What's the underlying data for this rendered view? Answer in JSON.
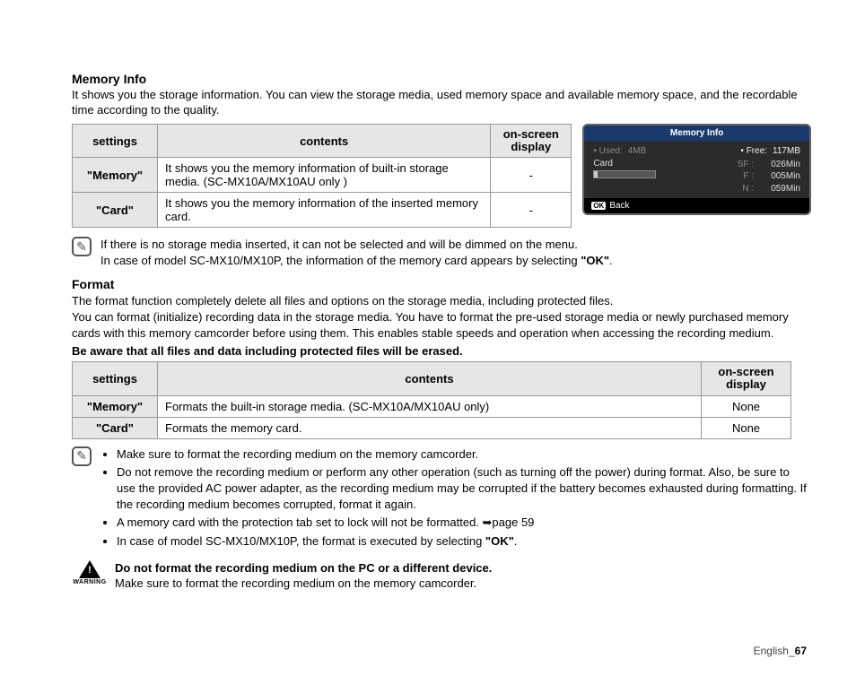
{
  "memory": {
    "title": "Memory Info",
    "intro": "It shows you the storage information. You can view the storage media, used memory space and available memory space, and the recordable time according to the quality.",
    "headers": {
      "settings": "settings",
      "contents": "contents",
      "osd": "on-screen display"
    },
    "rows": [
      {
        "setting": "\"Memory\"",
        "content": "It shows you the memory information of built-in storage media. (SC-MX10A/MX10AU only )",
        "osd": "-"
      },
      {
        "setting": "\"Card\"",
        "content": "It shows you the memory information of the inserted memory card.",
        "osd": "-"
      }
    ],
    "note1": "If there is no storage media inserted, it can not be selected and will be dimmed on the menu.",
    "note2a": "In case of model SC-MX10/MX10P, the information of the memory card appears by selecting ",
    "note2b": "\"OK\"",
    "note2c": "."
  },
  "lcd": {
    "title": "Memory Info",
    "used_label": "• Used:",
    "used_val": "4MB",
    "free_label": "• Free:",
    "free_val": "117MB",
    "card_label": "Card",
    "stats": [
      {
        "k": "SF :",
        "v": "026Min"
      },
      {
        "k": "F :",
        "v": "005Min"
      },
      {
        "k": "N :",
        "v": "059Min"
      }
    ],
    "bar_fill_pct": 5,
    "back": "Back",
    "ok": "OK"
  },
  "format": {
    "title": "Format",
    "intro": "The format function completely delete all files and options on the storage media, including protected files.\nYou can format (initialize) recording data in the storage media. You have to format the pre-used storage media or newly purchased memory cards with this memory camcorder before using them. This enables stable speeds and operation when accessing the recording medium.",
    "bold_note": "Be aware that all files and data including protected files will be erased.",
    "headers": {
      "settings": "settings",
      "contents": "contents",
      "osd": "on-screen display"
    },
    "rows": [
      {
        "setting": "\"Memory\"",
        "content": "Formats the built-in storage media. (SC-MX10A/MX10AU only)",
        "osd": "None"
      },
      {
        "setting": "\"Card\"",
        "content": "Formats the memory card.",
        "osd": "None"
      }
    ],
    "bullets": [
      "Make sure to format the recording medium on the memory camcorder.",
      "Do not remove the recording medium or perform any other operation (such as turning off the power) during format. Also, be sure to use the provided AC power adapter, as the recording medium may be corrupted if the battery becomes exhausted during formatting. If the recording medium becomes corrupted, format it again.",
      "A memory card with the protection tab set to lock will not be formatted.  ➥page 59",
      "In case of model SC-MX10/MX10P, the format is executed by selecting \"OK\"."
    ],
    "bullet_bold_idx": 3,
    "bullet_bold_text": "\"OK\"",
    "warning_title": "Do not format the recording medium on the PC or a different device.",
    "warning_body": "Make sure to format the recording medium on the memory camcorder.",
    "warning_label": "WARNING"
  },
  "footer": {
    "lang": "English_",
    "page": "67"
  },
  "colors": {
    "table_border": "#999999",
    "table_header_bg": "#e6e6e6",
    "lcd_bg": "#2b2b2b",
    "lcd_title_bg": "#1a3a6e",
    "lcd_dim": "#888888",
    "lcd_text": "#dddddd"
  }
}
